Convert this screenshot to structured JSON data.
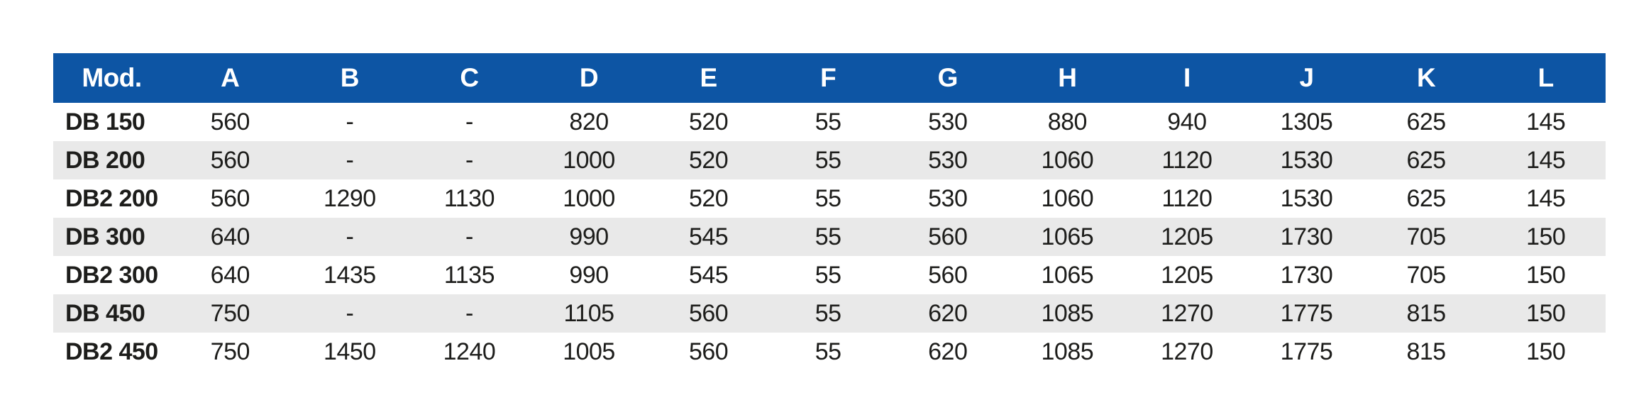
{
  "theme": {
    "header_bg": "#0d55a4",
    "header_text": "#ffffff",
    "row_bg": "#ffffff",
    "row_alt_bg": "#e9e9e9",
    "text_color": "#1d1d1b"
  },
  "table": {
    "columns": [
      "Mod.",
      "A",
      "B",
      "C",
      "D",
      "E",
      "F",
      "G",
      "H",
      "I",
      "J",
      "K",
      "L"
    ],
    "rows": [
      {
        "model": "DB 150",
        "values": [
          "560",
          "-",
          "-",
          "820",
          "520",
          "55",
          "530",
          "880",
          "940",
          "1305",
          "625",
          "145"
        ]
      },
      {
        "model": "DB 200",
        "values": [
          "560",
          "-",
          "-",
          "1000",
          "520",
          "55",
          "530",
          "1060",
          "1120",
          "1530",
          "625",
          "145"
        ]
      },
      {
        "model": "DB2 200",
        "values": [
          "560",
          "1290",
          "1130",
          "1000",
          "520",
          "55",
          "530",
          "1060",
          "1120",
          "1530",
          "625",
          "145"
        ]
      },
      {
        "model": "DB 300",
        "values": [
          "640",
          "-",
          "-",
          "990",
          "545",
          "55",
          "560",
          "1065",
          "1205",
          "1730",
          "705",
          "150"
        ]
      },
      {
        "model": "DB2 300",
        "values": [
          "640",
          "1435",
          "1135",
          "990",
          "545",
          "55",
          "560",
          "1065",
          "1205",
          "1730",
          "705",
          "150"
        ]
      },
      {
        "model": "DB 450",
        "values": [
          "750",
          "-",
          "-",
          "1105",
          "560",
          "55",
          "620",
          "1085",
          "1270",
          "1775",
          "815",
          "150"
        ]
      },
      {
        "model": "DB2 450",
        "values": [
          "750",
          "1450",
          "1240",
          "1005",
          "560",
          "55",
          "620",
          "1085",
          "1270",
          "1775",
          "815",
          "150"
        ]
      }
    ]
  }
}
